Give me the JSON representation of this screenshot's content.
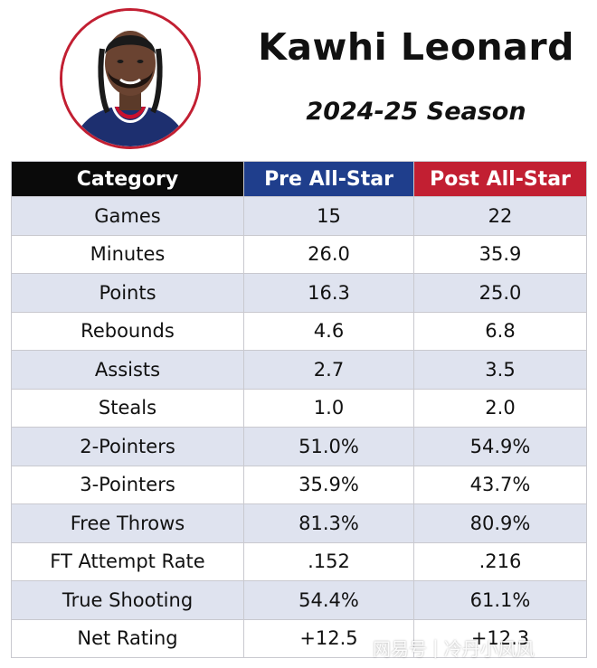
{
  "player": {
    "name": "Kawhi Leonard",
    "season": "2024-25 Season"
  },
  "table": {
    "headers": [
      "Category",
      "Pre All-Star",
      "Post All-Star"
    ],
    "rows": [
      [
        "Games",
        "15",
        "22"
      ],
      [
        "Minutes",
        "26.0",
        "35.9"
      ],
      [
        "Points",
        "16.3",
        "25.0"
      ],
      [
        "Rebounds",
        "4.6",
        "6.8"
      ],
      [
        "Assists",
        "2.7",
        "3.5"
      ],
      [
        "Steals",
        "1.0",
        "2.0"
      ],
      [
        "2-Pointers",
        "51.0%",
        "54.9%"
      ],
      [
        "3-Pointers",
        "35.9%",
        "43.7%"
      ],
      [
        "Free Throws",
        "81.3%",
        "80.9%"
      ],
      [
        "FT Attempt Rate",
        ".152",
        ".216"
      ],
      [
        "True Shooting",
        "54.4%",
        "61.1%"
      ],
      [
        "Net Rating",
        "+12.5",
        "+12.3"
      ]
    ]
  },
  "watermark": {
    "site": "网易号",
    "separator": "|",
    "author": "冷丹小凤凤"
  },
  "colors": {
    "category_header": "#0a0a0a",
    "pre_header": "#1f3e8c",
    "post_header": "#c21f32",
    "stripe": "#dfe3ef"
  },
  "icons": {
    "avatar": "player-headshot"
  }
}
